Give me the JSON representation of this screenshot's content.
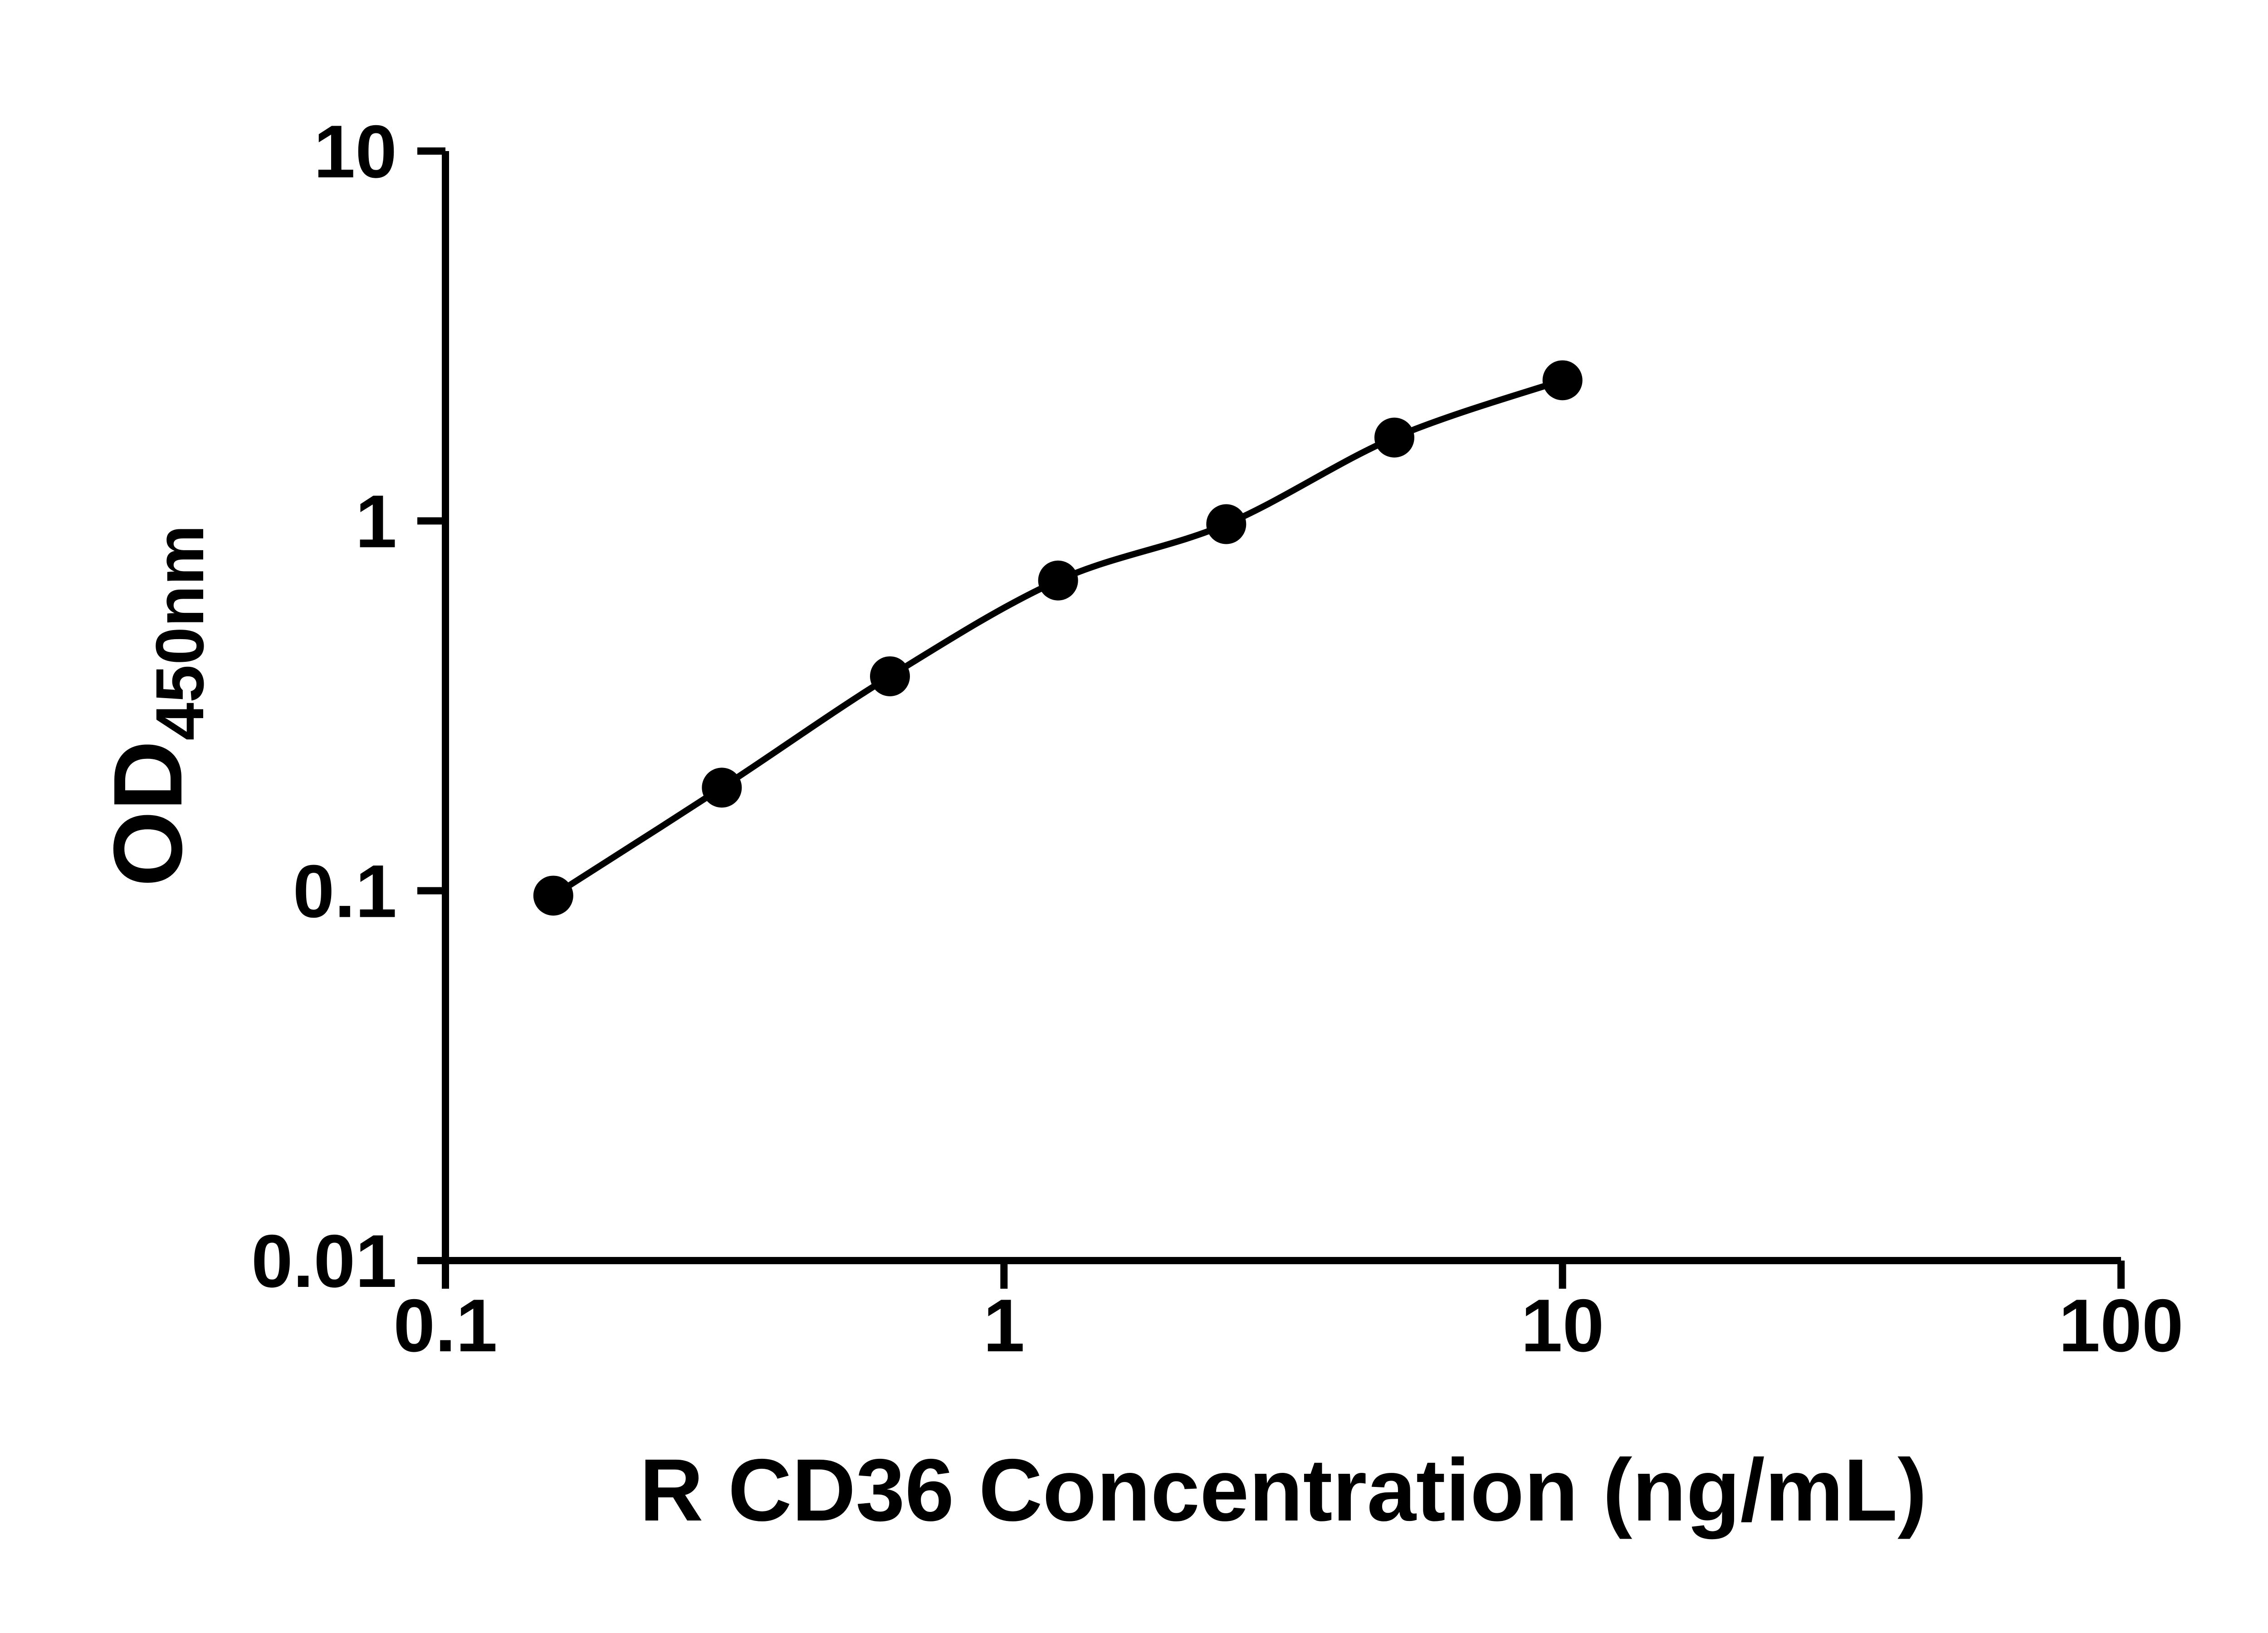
{
  "chart_data": {
    "type": "scatter",
    "subtype": "scatter-with-smooth-line",
    "x": [
      0.156,
      0.3125,
      0.625,
      1.25,
      2.5,
      5,
      10
    ],
    "y": [
      0.097,
      0.19,
      0.38,
      0.69,
      0.98,
      1.68,
      2.4
    ],
    "title": "",
    "xlabel": "R CD36 Concentration (ng/mL)",
    "ylabel_main": "OD",
    "ylabel_sub": "450nm",
    "xscale": "log",
    "yscale": "log",
    "xlim": [
      0.1,
      100
    ],
    "ylim": [
      0.01,
      10
    ],
    "xticks": [
      "0.1",
      "1",
      "10",
      "100"
    ],
    "yticks": [
      "0.01",
      "0.1",
      "1",
      "10"
    ],
    "grid": false,
    "legend_position": "none",
    "axis_color": "#000000",
    "line_color": "#000000",
    "marker_color": "#000000",
    "background_color": "#ffffff"
  }
}
